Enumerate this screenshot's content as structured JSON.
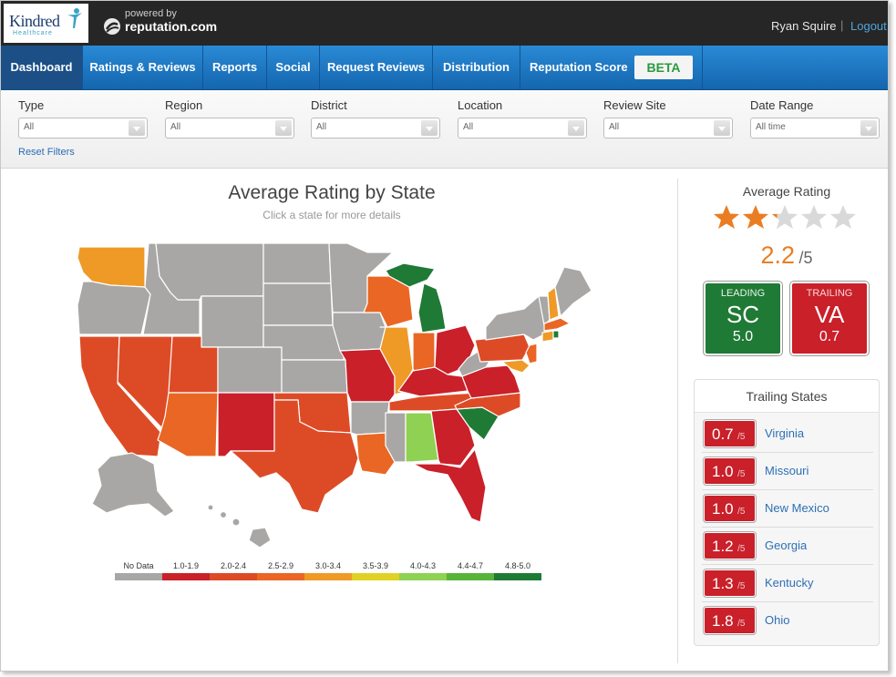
{
  "colors": {
    "no_data": "#a8a7a5",
    "r1": "#c9202a",
    "r2": "#dd4b26",
    "r3": "#ea6624",
    "r4": "#ef9a26",
    "r5": "#e0d225",
    "r6": "#8fd152",
    "r7": "#58b33b",
    "r8": "#1f7a35",
    "accent": "#1c71bd",
    "star": "#ea7d22"
  },
  "header": {
    "logo_text": "Kindred",
    "logo_subtext": "Healthcare",
    "powered_by": "powered by",
    "powered_name": "reputation.com",
    "user_name": "Ryan Squire",
    "separator": "|",
    "logout": "Logout"
  },
  "nav": {
    "items": [
      {
        "label": "Dashboard"
      },
      {
        "label": "Ratings & Reviews"
      },
      {
        "label": "Reports"
      },
      {
        "label": "Social"
      },
      {
        "label": "Request Reviews"
      },
      {
        "label": "Distribution"
      },
      {
        "label": "Reputation Score"
      }
    ],
    "badge": "BETA"
  },
  "filters": {
    "items": [
      {
        "label": "Type",
        "value": "All"
      },
      {
        "label": "Region",
        "value": "All"
      },
      {
        "label": "District",
        "value": "All"
      },
      {
        "label": "Location",
        "value": "All"
      },
      {
        "label": "Review Site",
        "value": "All"
      },
      {
        "label": "Date Range",
        "value": "All time"
      }
    ],
    "reset": "Reset Filters"
  },
  "map": {
    "title": "Average Rating by State",
    "subtitle": "Click a state for more details",
    "legend": [
      {
        "label": "No Data",
        "color": "#a8a7a5"
      },
      {
        "label": "1.0-1.9",
        "color": "#c9202a"
      },
      {
        "label": "2.0-2.4",
        "color": "#dd4b26"
      },
      {
        "label": "2.5-2.9",
        "color": "#ea6624"
      },
      {
        "label": "3.0-3.4",
        "color": "#ef9a26"
      },
      {
        "label": "3.5-3.9",
        "color": "#e0d225"
      },
      {
        "label": "4.0-4.3",
        "color": "#8fd152"
      },
      {
        "label": "4.4-4.7",
        "color": "#58b33b"
      },
      {
        "label": "4.8-5.0",
        "color": "#1f7a35"
      }
    ]
  },
  "summary": {
    "title": "Average Rating",
    "rating": 2.2,
    "rating_text": "2.2",
    "scale_text": "/5",
    "stars_total": 5,
    "leading": {
      "label": "LEADING",
      "state": "SC",
      "value": "5.0"
    },
    "trailing": {
      "label": "TRAILING",
      "state": "VA",
      "value": "0.7"
    }
  },
  "trailing_states": {
    "title": "Trailing States",
    "scale_text": "/5",
    "rows": [
      {
        "value": "0.7",
        "state": "Virginia"
      },
      {
        "value": "1.0",
        "state": "Missouri"
      },
      {
        "value": "1.0",
        "state": "New Mexico"
      },
      {
        "value": "1.2",
        "state": "Georgia"
      },
      {
        "value": "1.3",
        "state": "Kentucky"
      },
      {
        "value": "1.8",
        "state": "Ohio"
      }
    ]
  }
}
